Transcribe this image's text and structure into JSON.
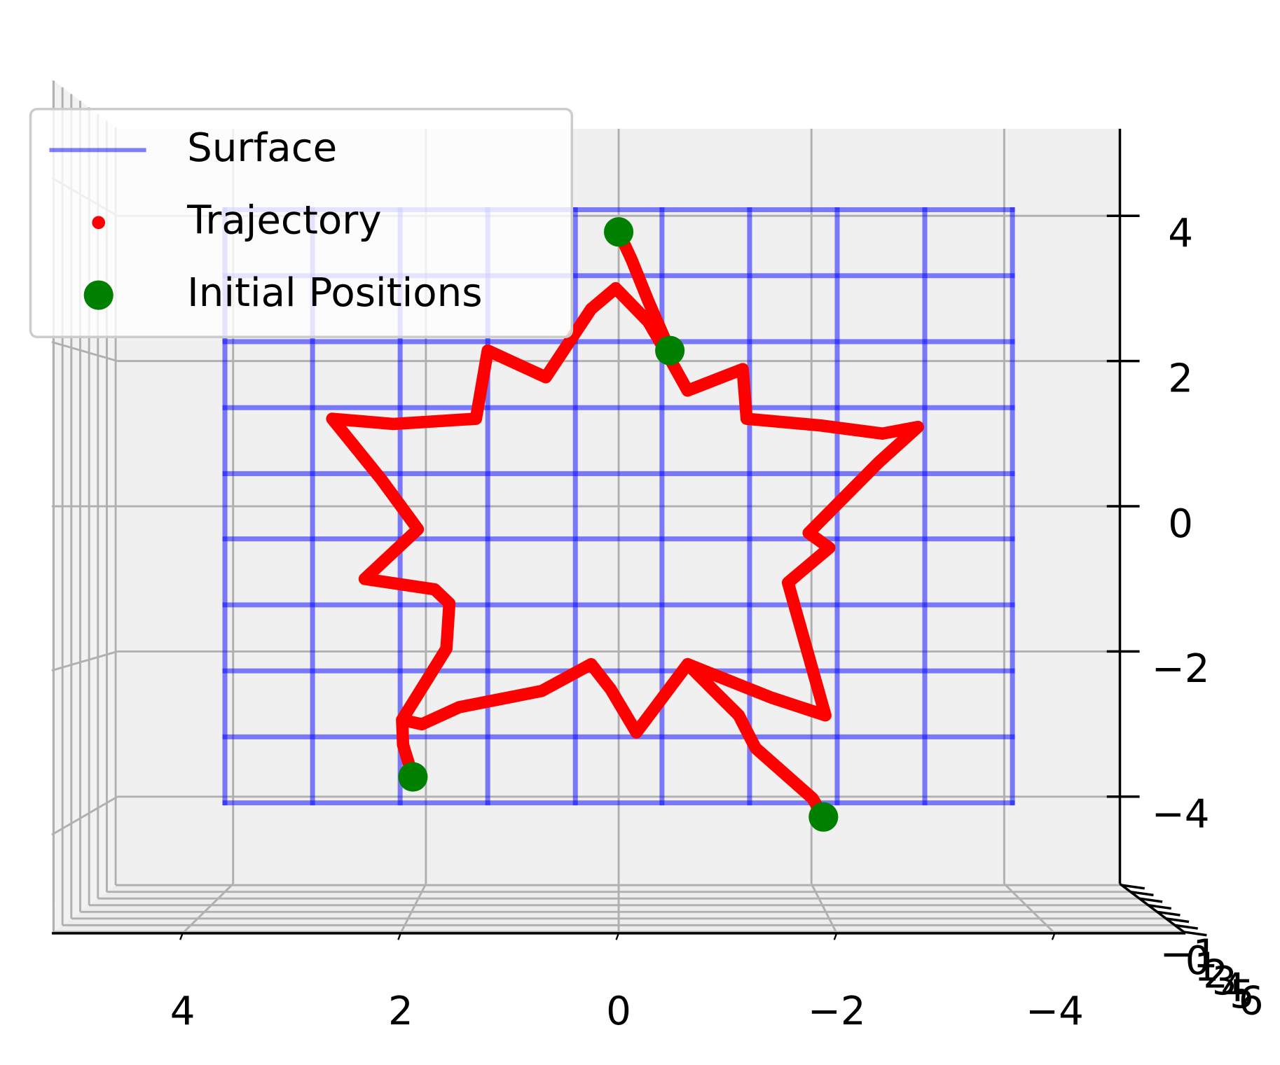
{
  "chart_data": {
    "type": "scatter3d",
    "xlim": [
      -5.2,
      5.2
    ],
    "ylim": [
      -5.2,
      5.2
    ],
    "zlim": [
      -1.2,
      6.2
    ],
    "xticks": [
      4,
      2,
      0,
      {
        "value": -2,
        "label": "−2"
      },
      {
        "value": -4,
        "label": "−4"
      }
    ],
    "yticks": [
      {
        "value": -4,
        "label": "−4"
      },
      {
        "value": -2,
        "label": "−2"
      },
      0,
      2,
      4
    ],
    "zticks": [
      {
        "value": -1,
        "label": "−1"
      },
      0,
      1,
      2,
      3,
      4,
      5,
      6
    ],
    "x_reversed": true,
    "grid": true,
    "legend": "upper left",
    "series": [
      {
        "name": "Surface",
        "type": "wireframe",
        "color": "#0000ff",
        "alpha": 0.5,
        "z": 0,
        "x": [
          -4,
          -3.11,
          -2.22,
          -1.33,
          -0.44,
          0.44,
          1.33,
          2.22,
          3.11,
          4
        ],
        "y": [
          -4,
          -3.11,
          -2.22,
          -1.33,
          -0.44,
          0.44,
          1.33,
          2.22,
          3.11,
          4
        ]
      },
      {
        "name": "Trajectory",
        "type": "trajectory",
        "color": "#ff0000",
        "z": 0,
        "x": [
          2.09,
          2.19,
          2.2,
          2.04,
          1.75,
          1.72,
          1.87,
          2.58,
          2.04,
          2.41,
          2.91,
          2.29,
          1.45,
          1.33,
          0.74,
          0.28,
          0.03,
          -0.3,
          -0.52,
          -0.7,
          -1.26,
          -1.3,
          -2.05,
          -2.68,
          -3.04,
          -2.64,
          -1.93,
          -2.14,
          -1.72,
          -2.1,
          -1.55,
          -0.7,
          -0.18,
          0.08,
          0.28,
          0.78,
          1.2,
          1.62,
          2.0,
          2.2,
          null,
          0,
          -0.13,
          -0.3,
          -0.52,
          null,
          -2.08,
          -1.97,
          -1.68,
          -1.39,
          -1.22,
          -0.97,
          -0.7
        ],
        "y": [
          -3.65,
          -3.22,
          -2.88,
          -2.54,
          -1.92,
          -1.31,
          -1.12,
          -0.98,
          -0.31,
          0.36,
          1.18,
          1.11,
          1.18,
          2.1,
          1.74,
          2.66,
          2.94,
          2.49,
          1.99,
          1.56,
          1.85,
          1.18,
          1.09,
          0.98,
          1.07,
          0.59,
          -0.36,
          -0.56,
          -1.03,
          -2.82,
          -2.58,
          -2.13,
          -3.05,
          -2.47,
          -2.13,
          -2.49,
          -2.6,
          -2.71,
          -2.94,
          -2.88,
          null,
          3.7,
          3.33,
          2.77,
          2.1,
          null,
          -4.19,
          -3.94,
          -3.6,
          -3.26,
          -2.82,
          -2.49,
          -2.13
        ]
      },
      {
        "name": "Initial Positions",
        "type": "scatter",
        "color": "#008000",
        "z": 0,
        "x": [
          0,
          -0.52,
          2.09,
          -2.08
        ],
        "y": [
          3.7,
          2.1,
          -3.65,
          -4.19
        ]
      }
    ]
  }
}
